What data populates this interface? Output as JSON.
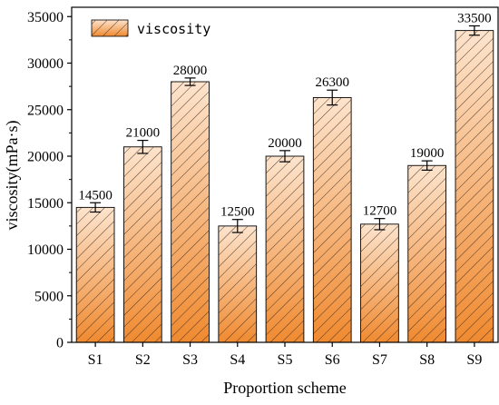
{
  "chart_data": {
    "type": "bar",
    "categories": [
      "S1",
      "S2",
      "S3",
      "S4",
      "S5",
      "S6",
      "S7",
      "S8",
      "S9"
    ],
    "series": [
      {
        "name": "viscosity",
        "values": [
          14500,
          21000,
          28000,
          12500,
          20000,
          26300,
          12700,
          19000,
          33500
        ],
        "errors": [
          500,
          700,
          400,
          700,
          600,
          800,
          600,
          500,
          500
        ],
        "data_labels": [
          "14500",
          "21000",
          "28000",
          "12500",
          "20000",
          "26300",
          "12700",
          "19000",
          "33500"
        ]
      }
    ],
    "xlabel": "Proportion scheme",
    "ylabel": "viscosity(mPa·s)",
    "ylim": [
      0,
      36000
    ],
    "yticks": [
      0,
      5000,
      10000,
      15000,
      20000,
      25000,
      30000,
      35000
    ],
    "ytick_labels": [
      "0",
      "5000",
      "10000",
      "15000",
      "20000",
      "25000",
      "30000",
      "35000"
    ],
    "legend_position": "top-left",
    "grid": false,
    "bar_fill": "diagonal hatch over orange gradient",
    "colors": {
      "bar_top": "#fde4cd",
      "bar_bottom": "#f08a30",
      "hatch": "#3a2a20",
      "axis": "#000000"
    }
  }
}
